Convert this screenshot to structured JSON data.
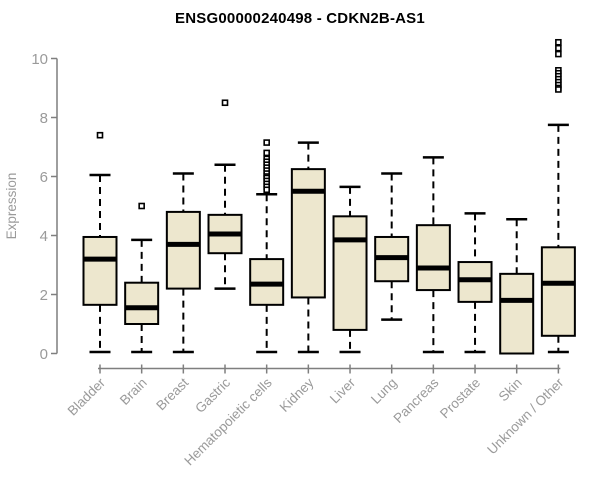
{
  "page": {
    "title": "ENSG00000240498 - CDKN2B-AS1"
  },
  "chart_data": {
    "type": "boxplot",
    "title": "ENSG00000240498 - CDKN2B-AS1",
    "xlabel": "",
    "ylabel": "Expression",
    "ylim": [
      0,
      10
    ],
    "yticks": [
      0,
      2,
      4,
      6,
      8,
      10
    ],
    "grid": false,
    "legend": "none",
    "categories": [
      "Bladder",
      "Brain",
      "Breast",
      "Gastric",
      "Hematopoietic cells",
      "Kidney",
      "Liver",
      "Lung",
      "Pancreas",
      "Prostate",
      "Skin",
      "Unknown / Other"
    ],
    "boxes": [
      {
        "category": "Bladder",
        "whisker_low": 0.05,
        "q1": 1.65,
        "median": 3.2,
        "q3": 3.95,
        "whisker_high": 6.05,
        "outliers": [
          7.4
        ]
      },
      {
        "category": "Brain",
        "whisker_low": 0.05,
        "q1": 1.0,
        "median": 1.55,
        "q3": 2.4,
        "whisker_high": 3.85,
        "outliers": [
          5.0
        ]
      },
      {
        "category": "Breast",
        "whisker_low": 0.05,
        "q1": 2.2,
        "median": 3.7,
        "q3": 4.8,
        "whisker_high": 6.1,
        "outliers": []
      },
      {
        "category": "Gastric",
        "whisker_low": 2.2,
        "q1": 3.4,
        "median": 4.05,
        "q3": 4.7,
        "whisker_high": 6.4,
        "outliers": [
          8.5
        ]
      },
      {
        "category": "Hematopoietic cells",
        "whisker_low": 0.05,
        "q1": 1.65,
        "median": 2.35,
        "q3": 3.2,
        "whisker_high": 5.4,
        "outliers": [
          7.15,
          6.8,
          6.6,
          6.5,
          6.4,
          6.3,
          6.2,
          6.1,
          6.0,
          5.95,
          5.85,
          5.75,
          5.65,
          5.55
        ]
      },
      {
        "category": "Kidney",
        "whisker_low": 0.05,
        "q1": 1.9,
        "median": 5.5,
        "q3": 6.25,
        "whisker_high": 7.15,
        "outliers": []
      },
      {
        "category": "Liver",
        "whisker_low": 0.05,
        "q1": 0.8,
        "median": 3.85,
        "q3": 4.65,
        "whisker_high": 5.65,
        "outliers": []
      },
      {
        "category": "Lung",
        "whisker_low": 1.15,
        "q1": 2.45,
        "median": 3.25,
        "q3": 3.95,
        "whisker_high": 6.1,
        "outliers": []
      },
      {
        "category": "Pancreas",
        "whisker_low": 0.05,
        "q1": 2.15,
        "median": 2.9,
        "q3": 4.35,
        "whisker_high": 6.65,
        "outliers": []
      },
      {
        "category": "Prostate",
        "whisker_low": 0.05,
        "q1": 1.75,
        "median": 2.5,
        "q3": 3.1,
        "whisker_high": 4.75,
        "outliers": []
      },
      {
        "category": "Skin",
        "whisker_low": 0.0,
        "q1": 0.0,
        "median": 1.8,
        "q3": 2.7,
        "whisker_high": 4.55,
        "outliers": []
      },
      {
        "category": "Unknown / Other",
        "whisker_low": 0.05,
        "q1": 0.6,
        "median": 2.38,
        "q3": 3.6,
        "whisker_high": 7.75,
        "outliers": [
          10.55,
          10.35,
          10.15,
          9.6,
          9.5,
          9.4,
          9.3,
          9.2,
          9.1,
          9.0,
          8.95
        ]
      }
    ],
    "colors": {
      "box_fill": "#ede7ce",
      "box_border": "#000000",
      "median": "#000000",
      "whisker": "#000000",
      "outlier_stroke": "#000000",
      "outlier_fill": "#ffffff",
      "axis_line": "#7f7f7f",
      "tick_label": "#9a9a9a",
      "axis_label": "#9a9a9a",
      "background": "#ffffff"
    }
  }
}
